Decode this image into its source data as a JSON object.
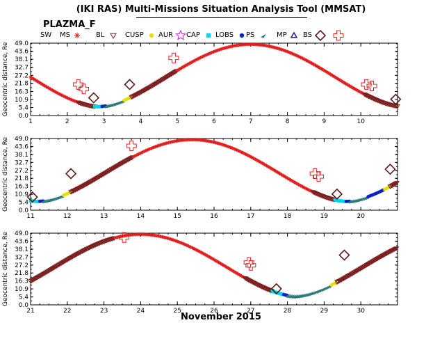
{
  "header": {
    "title": "(IKI RAS) Multi-Missions Situation Analysis Tool (MMSAT)",
    "subtitle": "PLAZMA_F"
  },
  "legend": [
    {
      "label": "SW",
      "marker": "none",
      "color": "#000000"
    },
    {
      "label": "MS",
      "marker": "star",
      "color": "#e02020"
    },
    {
      "label": "BL",
      "marker": "triangle-down",
      "color": "#7a1f1f"
    },
    {
      "label": "CUSP",
      "marker": "dot",
      "color": "#e8e000"
    },
    {
      "label": "AUR",
      "marker": "star-outline",
      "color": "#d020d0"
    },
    {
      "label": "CAP",
      "marker": "square",
      "color": "#00d8e8"
    },
    {
      "label": "LOBS",
      "marker": "dot",
      "color": "#1020c0"
    },
    {
      "label": "PS",
      "marker": "arrow",
      "color": "#2e7d7d"
    },
    {
      "label": "MP",
      "marker": "triangle-up",
      "color": "#1a1aa0"
    },
    {
      "label": "BS",
      "marker": "diamond",
      "color": "#5a1a1a"
    },
    {
      "label": "",
      "marker": "cross-outline",
      "color": "#e02020"
    }
  ],
  "chart_data": [
    {
      "type": "scatter",
      "xlabel": "",
      "ylabel": "Geocentric distance, Re",
      "xlim": [
        1,
        11
      ],
      "ylim": [
        0,
        49
      ],
      "yticks": [
        "0.0",
        "5.4",
        "10.9",
        "16.3",
        "21.8",
        "27.2",
        "32.7",
        "38.1",
        "43.6",
        "49.0"
      ],
      "xticks": [
        "1",
        "2",
        "3",
        "4",
        "5",
        "6",
        "7",
        "8",
        "9",
        "10"
      ],
      "orbit": {
        "apogee_day": 7.0,
        "perigee_days": [
          2.95,
          11.2
        ],
        "period": 8.3,
        "rmax": 48.2,
        "rmin": 6.0
      },
      "regions": [
        {
          "name": "MS",
          "x": [
            1.0,
            2.3
          ],
          "color": "#e02020"
        },
        {
          "name": "BL",
          "x": [
            2.3,
            2.75
          ],
          "color": "#7a1f1f"
        },
        {
          "name": "CAP",
          "x": [
            2.75,
            2.95
          ],
          "color": "#00d8e8"
        },
        {
          "name": "LOBS",
          "x": [
            2.95,
            3.05
          ],
          "color": "#1020c0"
        },
        {
          "name": "PS",
          "x": [
            3.05,
            3.55
          ],
          "color": "#2e7d7d"
        },
        {
          "name": "CUSP",
          "x": [
            3.55,
            3.75
          ],
          "color": "#e8e000"
        },
        {
          "name": "BL",
          "x": [
            3.75,
            5.0
          ],
          "color": "#7a1f1f"
        },
        {
          "name": "MS",
          "x": [
            5.0,
            10.1
          ],
          "color": "#e02020"
        },
        {
          "name": "BL",
          "x": [
            10.1,
            11.0
          ],
          "color": "#7a1f1f"
        }
      ],
      "crossings": [
        {
          "type": "BS",
          "x": 2.3,
          "r": 21
        },
        {
          "type": "BS",
          "x": 2.45,
          "r": 18
        },
        {
          "type": "MP",
          "x": 2.72,
          "r": 12
        },
        {
          "type": "MP",
          "x": 3.7,
          "r": 21
        },
        {
          "type": "BS",
          "x": 4.9,
          "r": 39
        },
        {
          "type": "BS",
          "x": 10.15,
          "r": 21
        },
        {
          "type": "BS",
          "x": 10.3,
          "r": 20
        },
        {
          "type": "MP",
          "x": 10.95,
          "r": 11
        }
      ]
    },
    {
      "type": "scatter",
      "xlabel": "",
      "ylabel": "Geocentric distance, Re",
      "xlim": [
        11,
        21
      ],
      "ylim": [
        0,
        49
      ],
      "yticks": [
        "0.0",
        "5.4",
        "10.9",
        "16.3",
        "21.8",
        "27.2",
        "32.7",
        "38.1",
        "43.6",
        "49.0"
      ],
      "xticks": [
        "11",
        "12",
        "13",
        "14",
        "15",
        "16",
        "17",
        "18",
        "19",
        "20"
      ],
      "orbit": {
        "apogee_day": 15.4,
        "perigee_days": [
          11.2,
          19.6
        ],
        "period": 8.4,
        "rmax": 48.2,
        "rmin": 6.0
      },
      "regions": [
        {
          "name": "CAP",
          "x": [
            11.0,
            11.25
          ],
          "color": "#00d8e8"
        },
        {
          "name": "LOBS",
          "x": [
            11.25,
            11.35
          ],
          "color": "#1020c0"
        },
        {
          "name": "PS",
          "x": [
            11.35,
            11.9
          ],
          "color": "#2e7d7d"
        },
        {
          "name": "CUSP",
          "x": [
            11.9,
            12.1
          ],
          "color": "#e8e000"
        },
        {
          "name": "BL",
          "x": [
            12.1,
            13.8
          ],
          "color": "#7a1f1f"
        },
        {
          "name": "MS",
          "x": [
            13.8,
            18.7
          ],
          "color": "#e02020"
        },
        {
          "name": "BL",
          "x": [
            18.7,
            19.3
          ],
          "color": "#7a1f1f"
        },
        {
          "name": "CAP",
          "x": [
            19.3,
            19.6
          ],
          "color": "#00d8e8"
        },
        {
          "name": "LOBS",
          "x": [
            19.6,
            19.7
          ],
          "color": "#1020c0"
        },
        {
          "name": "PS",
          "x": [
            19.7,
            20.2
          ],
          "color": "#2e7d7d"
        },
        {
          "name": "LOBS",
          "x": [
            20.2,
            20.65
          ],
          "color": "#1020c0"
        },
        {
          "name": "CUSP",
          "x": [
            20.65,
            20.8
          ],
          "color": "#e8e000"
        },
        {
          "name": "BL",
          "x": [
            20.8,
            21.0
          ],
          "color": "#7a1f1f"
        }
      ],
      "crossings": [
        {
          "type": "MP",
          "x": 11.05,
          "r": 9
        },
        {
          "type": "MP",
          "x": 12.1,
          "r": 25
        },
        {
          "type": "BS",
          "x": 13.75,
          "r": 44
        },
        {
          "type": "BS",
          "x": 18.75,
          "r": 25
        },
        {
          "type": "BS",
          "x": 18.85,
          "r": 23
        },
        {
          "type": "MP",
          "x": 19.35,
          "r": 11
        },
        {
          "type": "MP",
          "x": 20.8,
          "r": 28
        }
      ]
    },
    {
      "type": "scatter",
      "xlabel": "November 2015",
      "ylabel": "Geocentric distance, Re",
      "xlim": [
        21,
        31
      ],
      "ylim": [
        0,
        49
      ],
      "yticks": [
        "0.0",
        "5.4",
        "10.9",
        "16.3",
        "21.8",
        "27.2",
        "32.7",
        "38.1",
        "43.6",
        "49.0"
      ],
      "xticks": [
        "21",
        "22",
        "23",
        "24",
        "25",
        "26",
        "27",
        "28",
        "29",
        "30"
      ],
      "orbit": {
        "apogee_day": 24.0,
        "perigee_days": [
          19.6,
          27.95
        ],
        "period": 8.4,
        "rmax": 48.2,
        "rmin": 6.0
      },
      "regions": [
        {
          "name": "BL",
          "x": [
            21.0,
            23.3
          ],
          "color": "#7a1f1f"
        },
        {
          "name": "MS",
          "x": [
            23.3,
            26.85
          ],
          "color": "#e02020"
        },
        {
          "name": "BL",
          "x": [
            26.85,
            27.6
          ],
          "color": "#7a1f1f"
        },
        {
          "name": "CAP",
          "x": [
            27.6,
            27.9
          ],
          "color": "#00d8e8"
        },
        {
          "name": "LOBS",
          "x": [
            27.9,
            28.0
          ],
          "color": "#1020c0"
        },
        {
          "name": "PS",
          "x": [
            28.0,
            29.2
          ],
          "color": "#2e7d7d"
        },
        {
          "name": "CUSP",
          "x": [
            29.2,
            29.35
          ],
          "color": "#e8e000"
        },
        {
          "name": "BL",
          "x": [
            29.35,
            31.0
          ],
          "color": "#7a1f1f"
        }
      ],
      "crossings": [
        {
          "type": "BS",
          "x": 23.55,
          "r": 46
        },
        {
          "type": "BS",
          "x": 26.95,
          "r": 29
        },
        {
          "type": "BS",
          "x": 27.0,
          "r": 27
        },
        {
          "type": "MP",
          "x": 27.7,
          "r": 11
        },
        {
          "type": "MP",
          "x": 29.55,
          "r": 34
        }
      ]
    }
  ]
}
